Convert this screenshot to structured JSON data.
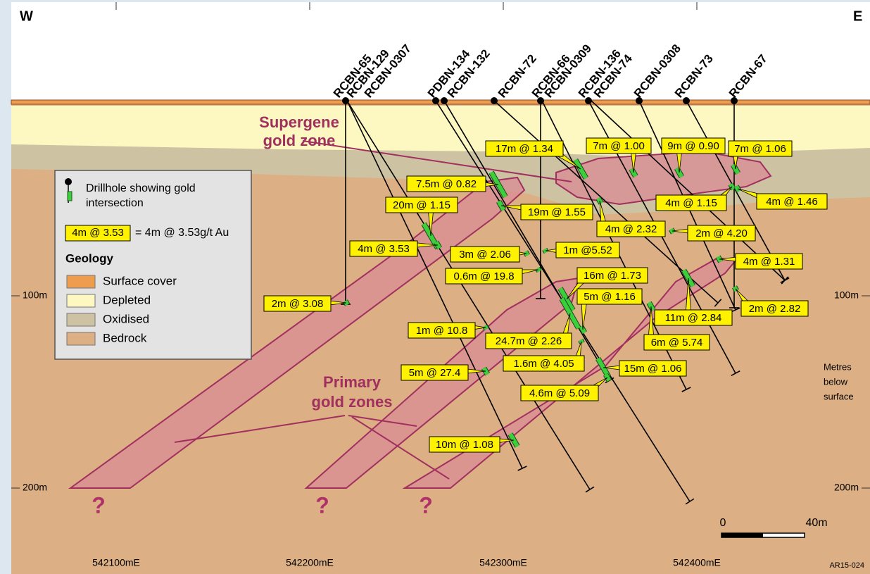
{
  "corners": {
    "west": "W",
    "east": "E"
  },
  "drillholes": [
    "RCBN-65",
    "RCBN-129",
    "RCBN-0307",
    "PDBN-134",
    "RCBN-132",
    "RCBN-72",
    "RCBN-66",
    "RCBN-0309",
    "RCBN-136",
    "RCBN-74",
    "RCBN-0308",
    "RCBN-73",
    "RCBN-67"
  ],
  "intersections": [
    "17m @ 1.34",
    "7m @ 1.00",
    "9m @ 0.90",
    "7m @ 1.06",
    "7.5m @ 0.82",
    "20m @ 1.15",
    "19m @ 1.55",
    "4m @ 1.15",
    "4m @ 1.46",
    "4m @ 2.32",
    "2m @ 4.20",
    "4m @ 3.53",
    "3m @ 2.06",
    "1m @5.52",
    "0.6m @ 19.8",
    "16m @ 1.73",
    "4m @ 1.31",
    "5m @ 1.16",
    "2m @ 3.08",
    "2m @ 2.82",
    "11m @ 2.84",
    "1m @ 10.8",
    "24.7m @ 2.26",
    "6m @ 5.74",
    "1.6m @ 4.05",
    "15m @ 1.06",
    "5m @ 27.4",
    "4.6m @ 5.09",
    "10m @ 1.08"
  ],
  "zones": {
    "supergene": [
      "Supergene",
      "gold zone"
    ],
    "primary": [
      "Primary",
      "gold zones"
    ],
    "unknown": [
      "?",
      "?",
      "?"
    ]
  },
  "legend": {
    "drillhole": [
      "Drillhole showing gold",
      "intersection"
    ],
    "sample": "4m @ 3.53",
    "sample_meaning": "= 4m @ 3.53g/t Au",
    "geology_title": "Geology",
    "geology": [
      "Surface cover",
      "Depleted",
      "Oxidised",
      "Bedrock"
    ]
  },
  "depth_labels": {
    "left": [
      "100m",
      "200m"
    ],
    "right": [
      "100m",
      "200m"
    ]
  },
  "eastings": [
    "542100mE",
    "542200mE",
    "542300mE",
    "542400mE"
  ],
  "scale": {
    "start": "0",
    "end": "40m"
  },
  "depth_note": [
    "Metres",
    "below",
    "surface"
  ],
  "figure_id": "AR15-024"
}
